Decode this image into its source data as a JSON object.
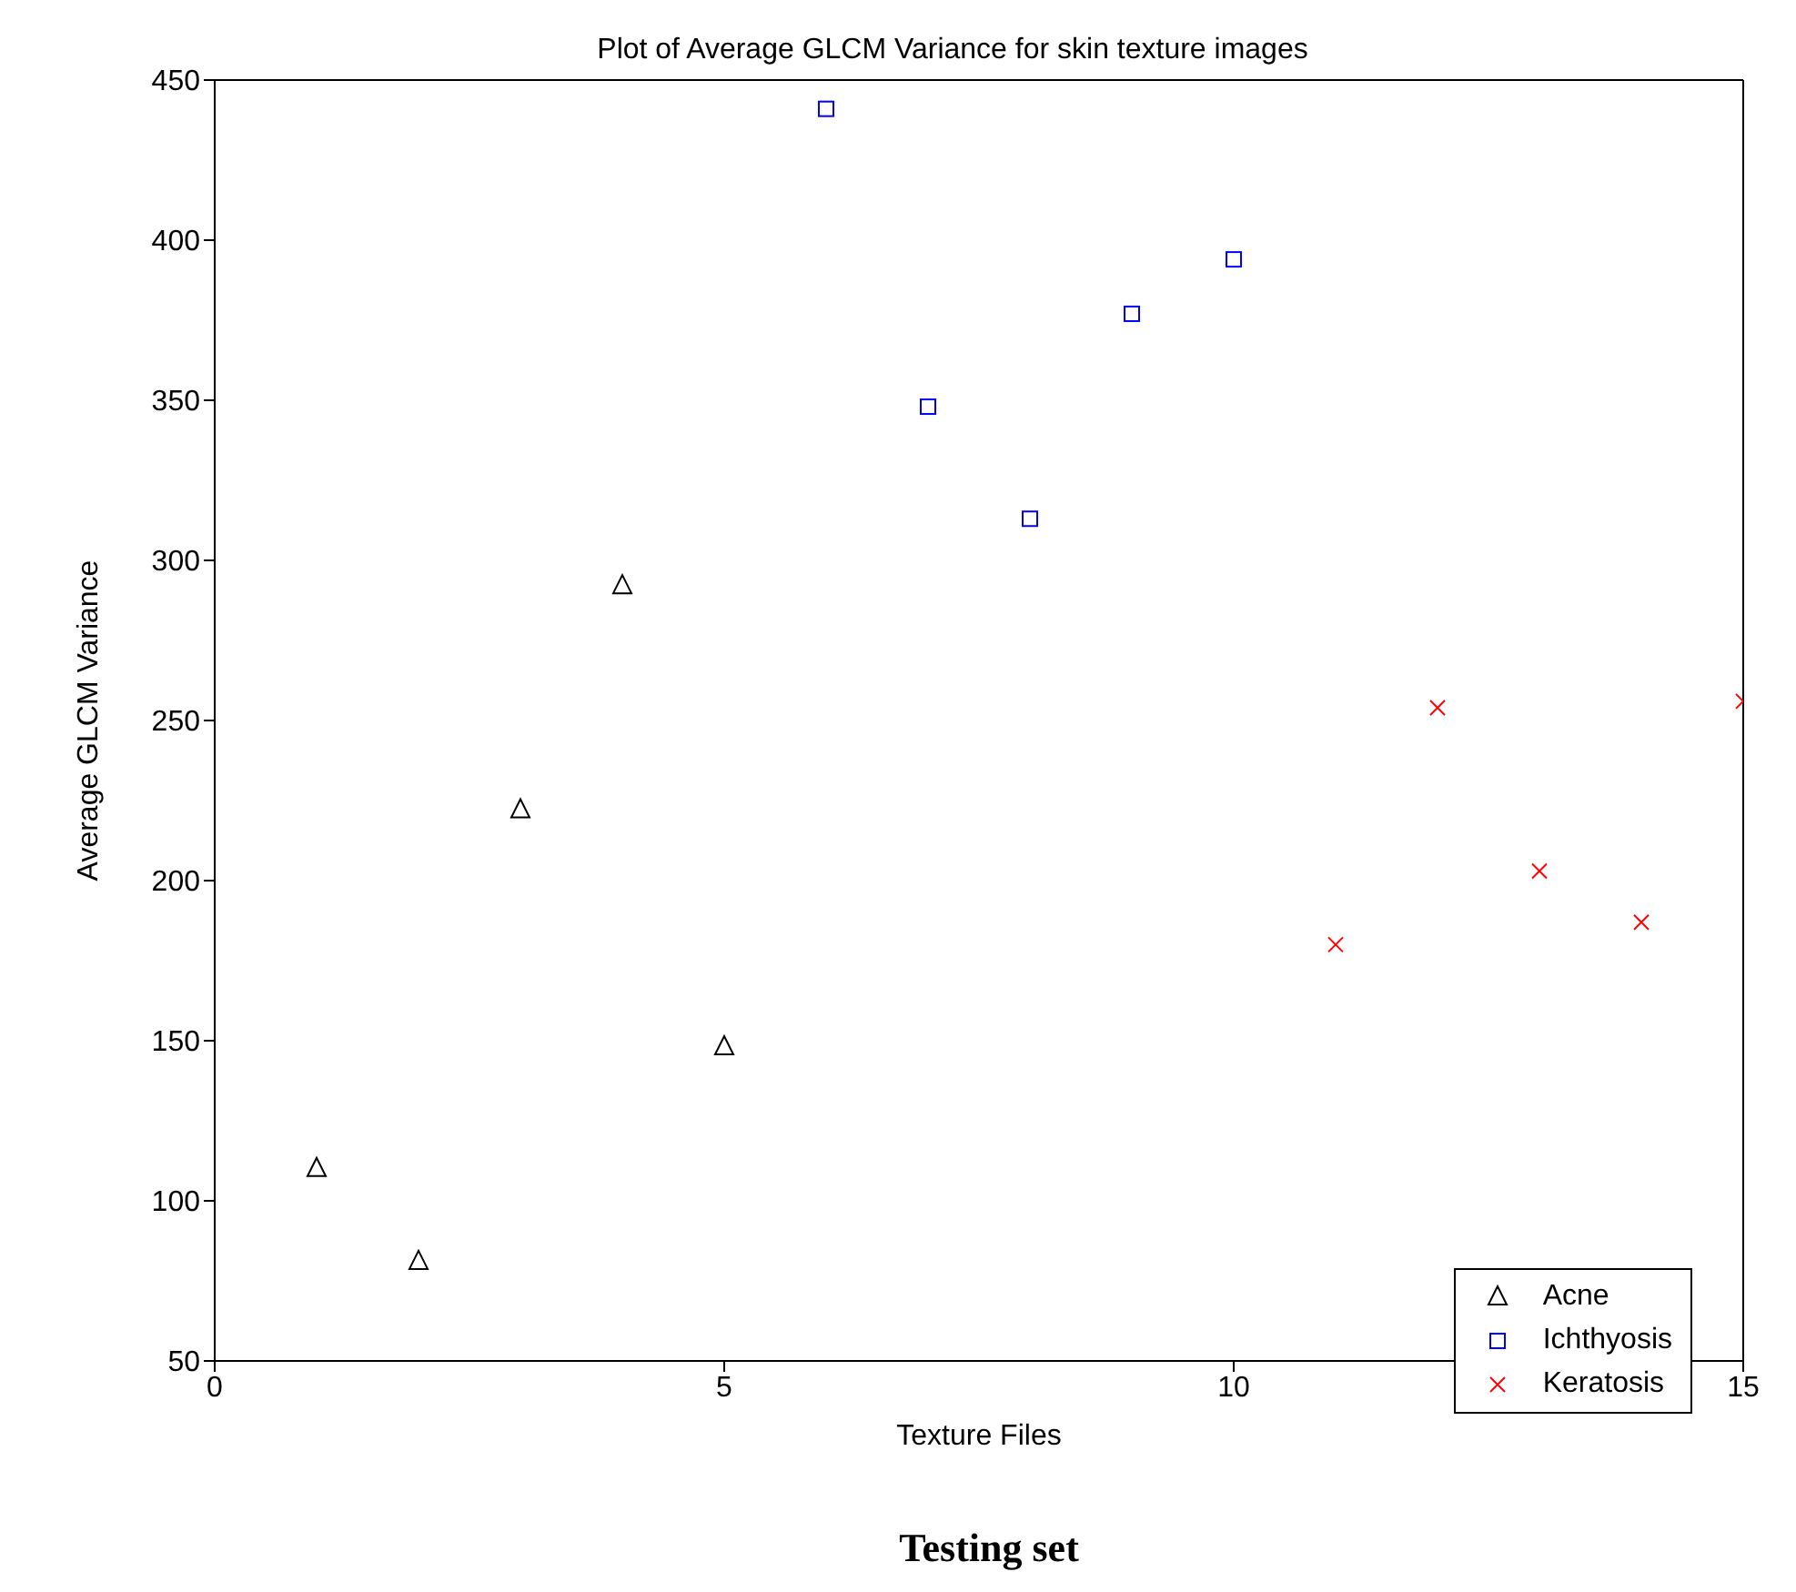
{
  "chart_data": {
    "type": "scatter",
    "title": "Plot of Average GLCM Variance for skin texture images",
    "xlabel": "Texture Files",
    "ylabel": "Average GLCM Variance",
    "xlim": [
      0,
      15
    ],
    "xticks": [
      0,
      5,
      10,
      15
    ],
    "ylim": [
      50,
      450
    ],
    "yticks": [
      50,
      100,
      150,
      200,
      250,
      300,
      350,
      400,
      450
    ],
    "legend": "bottom right",
    "annotations": [
      "Testing set"
    ],
    "series": [
      {
        "name": "Acne",
        "color": "#000000",
        "marker": "triangle",
        "x": [
          1,
          2,
          3,
          4,
          5
        ],
        "values": [
          110,
          81,
          222,
          292,
          148
        ]
      },
      {
        "name": "Ichthyosis",
        "color": "#0000ff",
        "marker": "square",
        "x": [
          6,
          7,
          8,
          9,
          10
        ],
        "values": [
          441,
          348,
          313,
          377,
          394
        ]
      },
      {
        "name": "Keratosis",
        "color": "#ff0000",
        "marker": "cross",
        "x": [
          11,
          12,
          13,
          14,
          15
        ],
        "values": [
          180,
          254,
          203,
          187,
          256
        ]
      }
    ]
  }
}
